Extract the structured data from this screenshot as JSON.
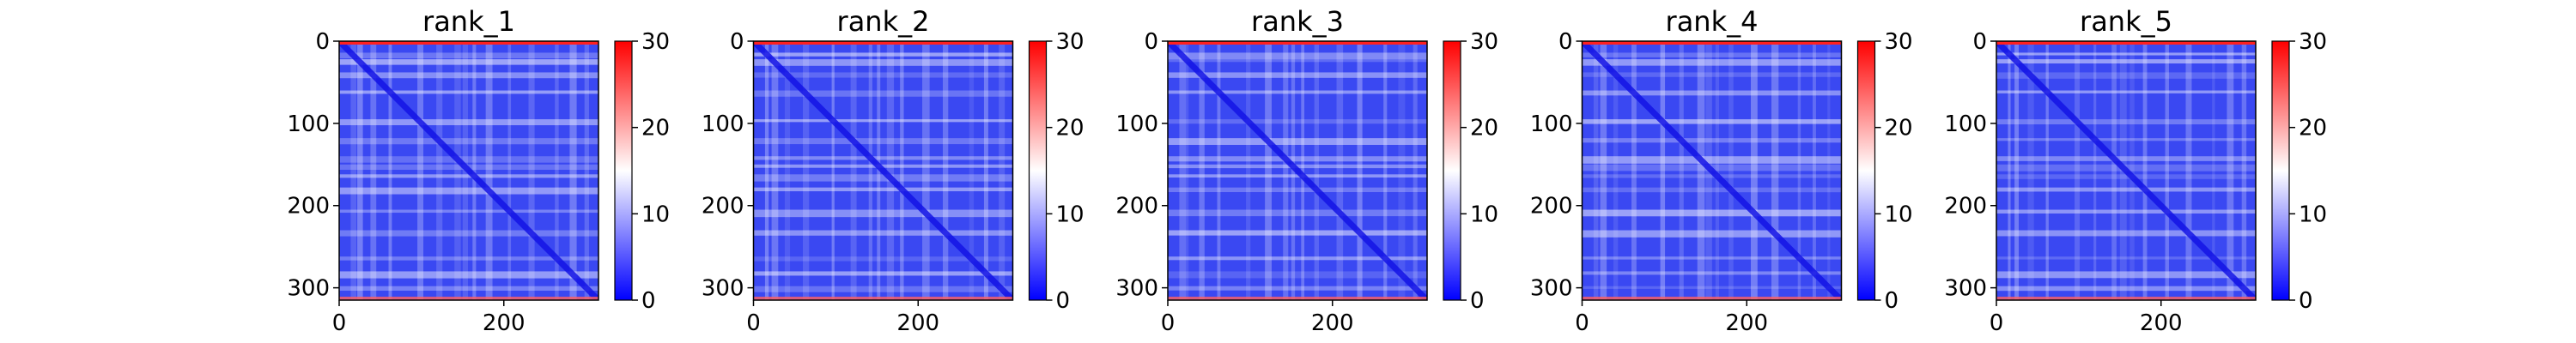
{
  "chart_data": {
    "type": "heatmap",
    "matrix_size": 315,
    "colormap": "bwr",
    "colors": {
      "low": "#0000ff",
      "mid": "#ffffff",
      "high": "#ff0000"
    },
    "xlim": [
      0,
      315
    ],
    "ylim": [
      315,
      0
    ],
    "xticks": [
      0,
      200
    ],
    "yticks": [
      0,
      100,
      200,
      300
    ],
    "colorbar": {
      "vmin": 0,
      "vmax": 30,
      "ticks": [
        0,
        10,
        20,
        30
      ]
    },
    "panels": [
      {
        "title": "rank_1"
      },
      {
        "title": "rank_2"
      },
      {
        "title": "rank_3"
      },
      {
        "title": "rank_4"
      },
      {
        "title": "rank_5"
      }
    ]
  }
}
